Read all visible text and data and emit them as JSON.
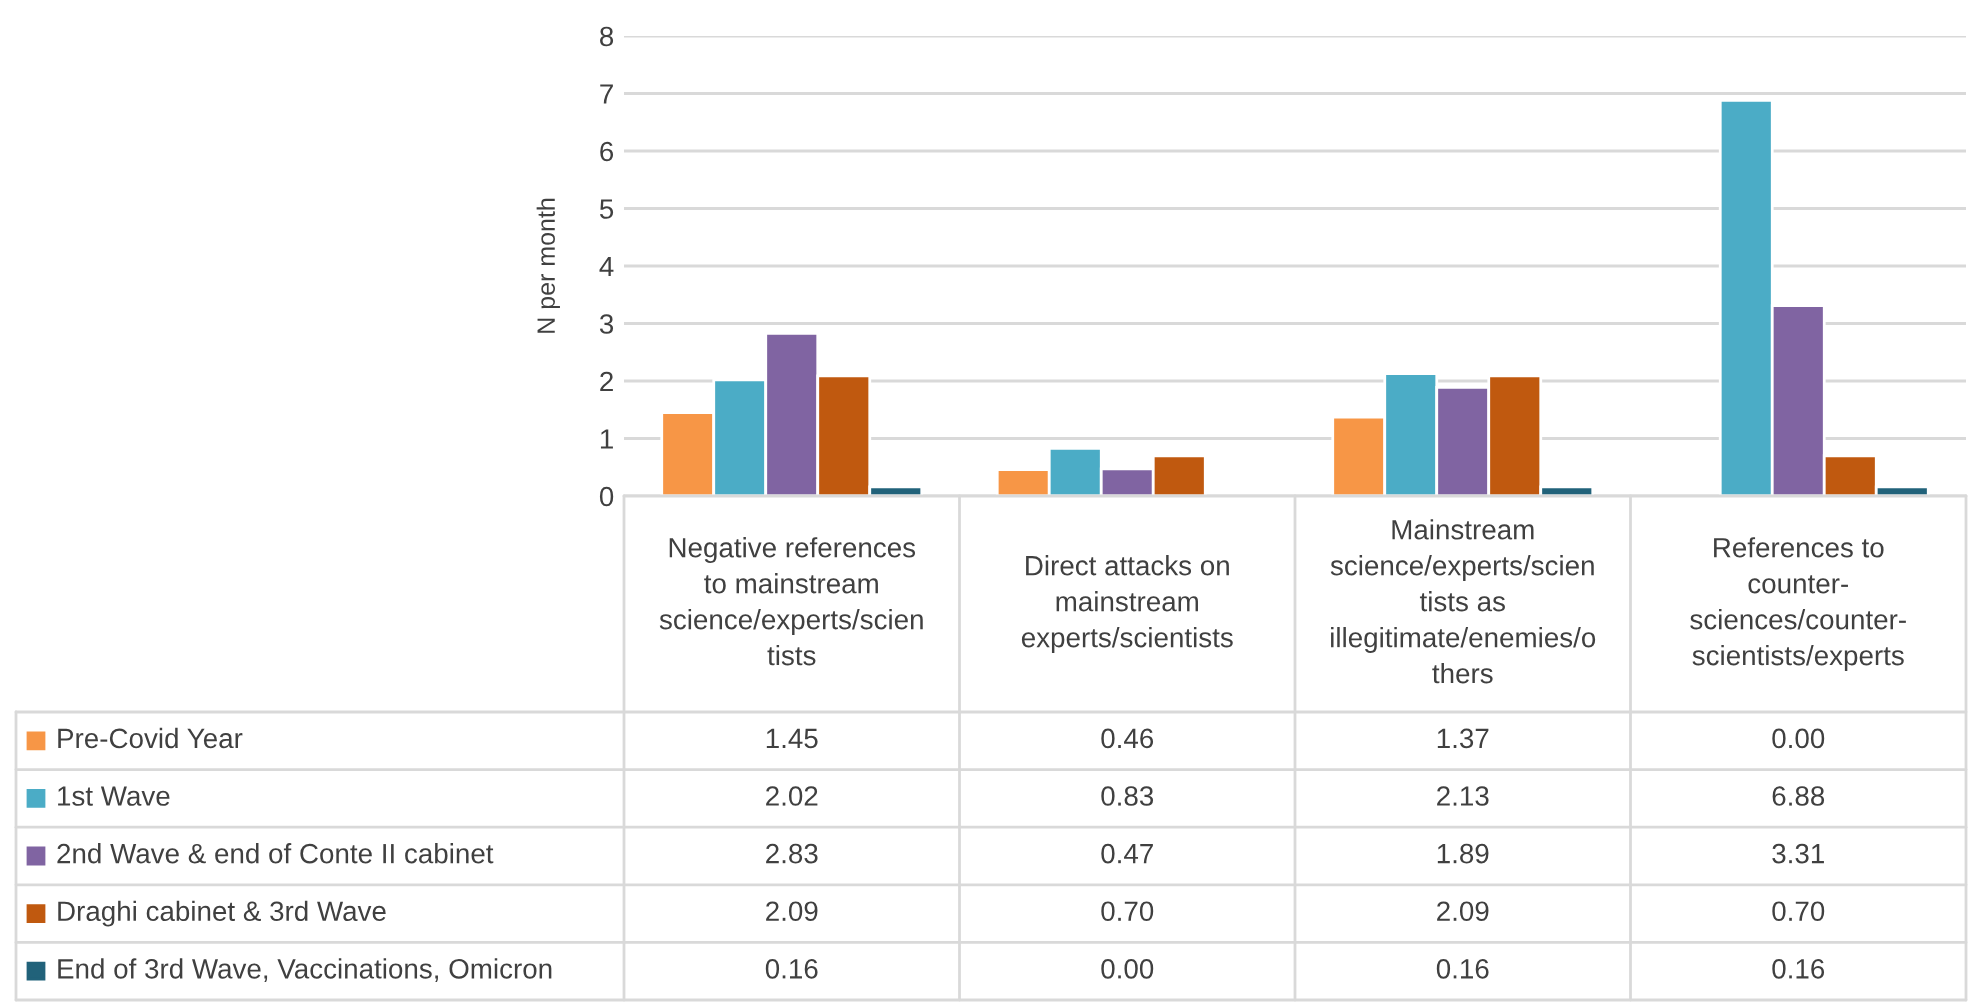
{
  "chart_data": {
    "type": "bar",
    "ylabel": "N per month",
    "categories": [
      "Negative references\nto mainstream\nscience/experts/scien\ntists",
      "Direct attacks on\nmainstream\nexperts/scientists",
      "Mainstream\nscience/experts/scien\ntists as\nillegitimate/enemies/o\nthers",
      "References to\ncounter-\nsciences/counter-\nscientists/experts"
    ],
    "series": [
      {
        "name": "Pre-Covid Year",
        "color": "#f79646",
        "values": [
          1.45,
          0.46,
          1.37,
          0.0
        ],
        "value_labels": [
          "1.45",
          "0.46",
          "1.37",
          "0.00"
        ]
      },
      {
        "name": "1st Wave",
        "color": "#4bacc6",
        "values": [
          2.02,
          0.83,
          2.13,
          6.88
        ],
        "value_labels": [
          "2.02",
          "0.83",
          "2.13",
          "6.88"
        ]
      },
      {
        "name": "2nd Wave & end of Conte II cabinet",
        "color": "#8064a2",
        "values": [
          2.83,
          0.47,
          1.89,
          3.31
        ],
        "value_labels": [
          "2.83",
          "0.47",
          "1.89",
          "3.31"
        ]
      },
      {
        "name": "Draghi cabinet & 3rd Wave",
        "color": "#c0590f",
        "values": [
          2.09,
          0.7,
          2.09,
          0.7
        ],
        "value_labels": [
          "2.09",
          "0.70",
          "2.09",
          "0.70"
        ]
      },
      {
        "name": "End of 3rd Wave, Vaccinations, Omicron",
        "color": "#21627a",
        "values": [
          0.16,
          0.0,
          0.16,
          0.16
        ],
        "value_labels": [
          "0.16",
          "0.00",
          "0.16",
          "0.16"
        ]
      }
    ],
    "ylim": [
      0,
      8
    ],
    "yticks": [
      0,
      1,
      2,
      3,
      4,
      5,
      6,
      7,
      8
    ],
    "grid": "y",
    "legend": "bottom left"
  }
}
